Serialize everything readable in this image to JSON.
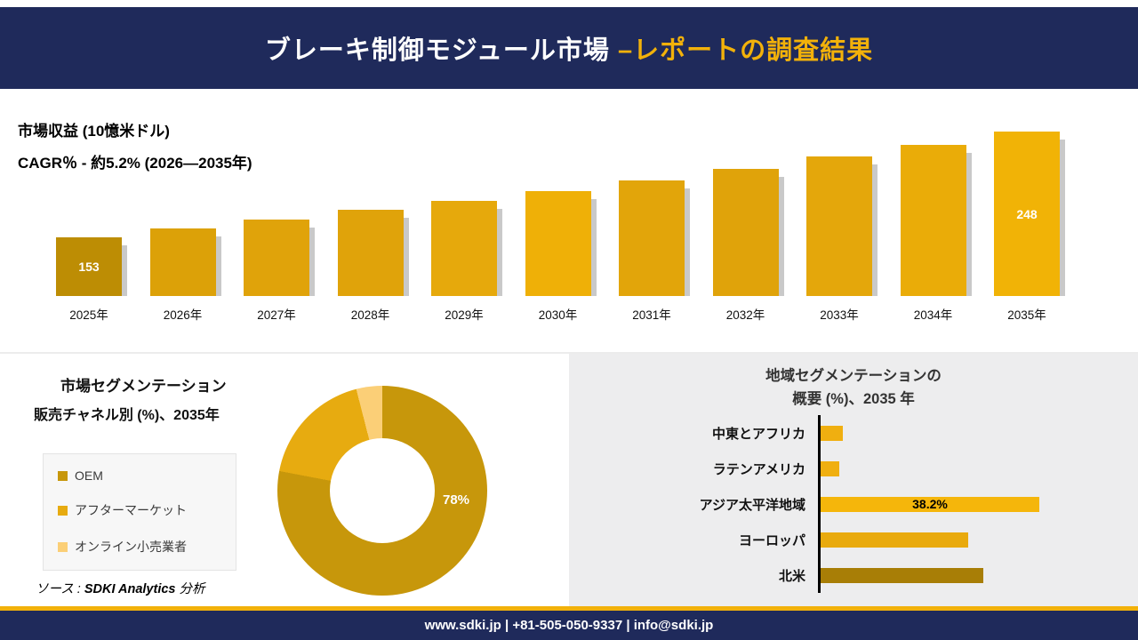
{
  "header": {
    "title_main": "ブレーキ制御モジュール市場 ",
    "title_accent": "–レポートの調査結果"
  },
  "colors": {
    "navy": "#1F2A5B",
    "gold_accent": "#F2B10A",
    "bar_gold": "#E0A30A",
    "shadow_gray": "#C9C9C9",
    "panel_gray": "#EDEDEE"
  },
  "revenue": {
    "heading1": "市場収益 (10憶米ドル)",
    "heading2": "CAGR％ - 約5.2% (2026―2035年)"
  },
  "segmentation": {
    "title1": "市場セグメンテーション",
    "title2": "販売チャネル別 (%)、2035年",
    "source_prefix": "ソース : ",
    "source_name": "SDKI Analytics",
    "source_suffix": " 分析"
  },
  "region": {
    "title_line1": "地域セグメンテーションの",
    "title_line2": "概要 (%)、2035 年"
  },
  "footer": {
    "text": "www.sdki.jp | +81-505-050-9337 | info@sdki.jp"
  },
  "chart_data": [
    {
      "type": "bar",
      "title": "市場収益 (10憶米ドル)",
      "subtitle": "CAGR％ - 約5.2% (2026―2035年)",
      "categories": [
        "2025年",
        "2026年",
        "2027年",
        "2028年",
        "2029年",
        "2030年",
        "2031年",
        "2032年",
        "2033年",
        "2034年",
        "2035年"
      ],
      "values": [
        153,
        161,
        169,
        177,
        185,
        194,
        204,
        214,
        225,
        236,
        248
      ],
      "value_labels": [
        "153",
        "",
        "",
        "",
        "",
        "",
        "",
        "",
        "",
        "",
        "248"
      ],
      "bar_colors": [
        "#BD8D04",
        "#DCA108",
        "#E0A30A",
        "#E0A30A",
        "#E6A90C",
        "#EFB007",
        "#E2A50A",
        "#E0A30A",
        "#E4A70B",
        "#EAAC08",
        "#F1B306"
      ],
      "ylim": [
        100,
        250
      ],
      "grid": false,
      "legend": "none"
    },
    {
      "type": "pie",
      "donut": true,
      "title": "市場セグメンテーション 販売チャネル別 (%)、2035年",
      "labels": [
        "OEM",
        "アフターマーケット",
        "オンライン小売業者"
      ],
      "values": [
        78,
        18,
        4
      ],
      "colors": [
        "#C7970B",
        "#E7AB10",
        "#FBCF77"
      ],
      "visible_labels": [
        "78%"
      ],
      "legend_position": "left"
    },
    {
      "type": "bar",
      "orientation": "horizontal",
      "title": "地域セグメンテーションの概要 (%)、2035 年",
      "categories": [
        "中東とアフリカ",
        "ラテンアメリカ",
        "アジア太平洋地域",
        "ヨーロッパ",
        "北米"
      ],
      "values": [
        3.9,
        3.3,
        38.2,
        25.8,
        28.4
      ],
      "value_labels": [
        "",
        "",
        "38.2%",
        "",
        ""
      ],
      "bar_colors": [
        "#F0AF10",
        "#F0AF10",
        "#F5B60B",
        "#E9AA0E",
        "#A87E06"
      ],
      "xlim": [
        0,
        40
      ],
      "grid": false
    }
  ]
}
